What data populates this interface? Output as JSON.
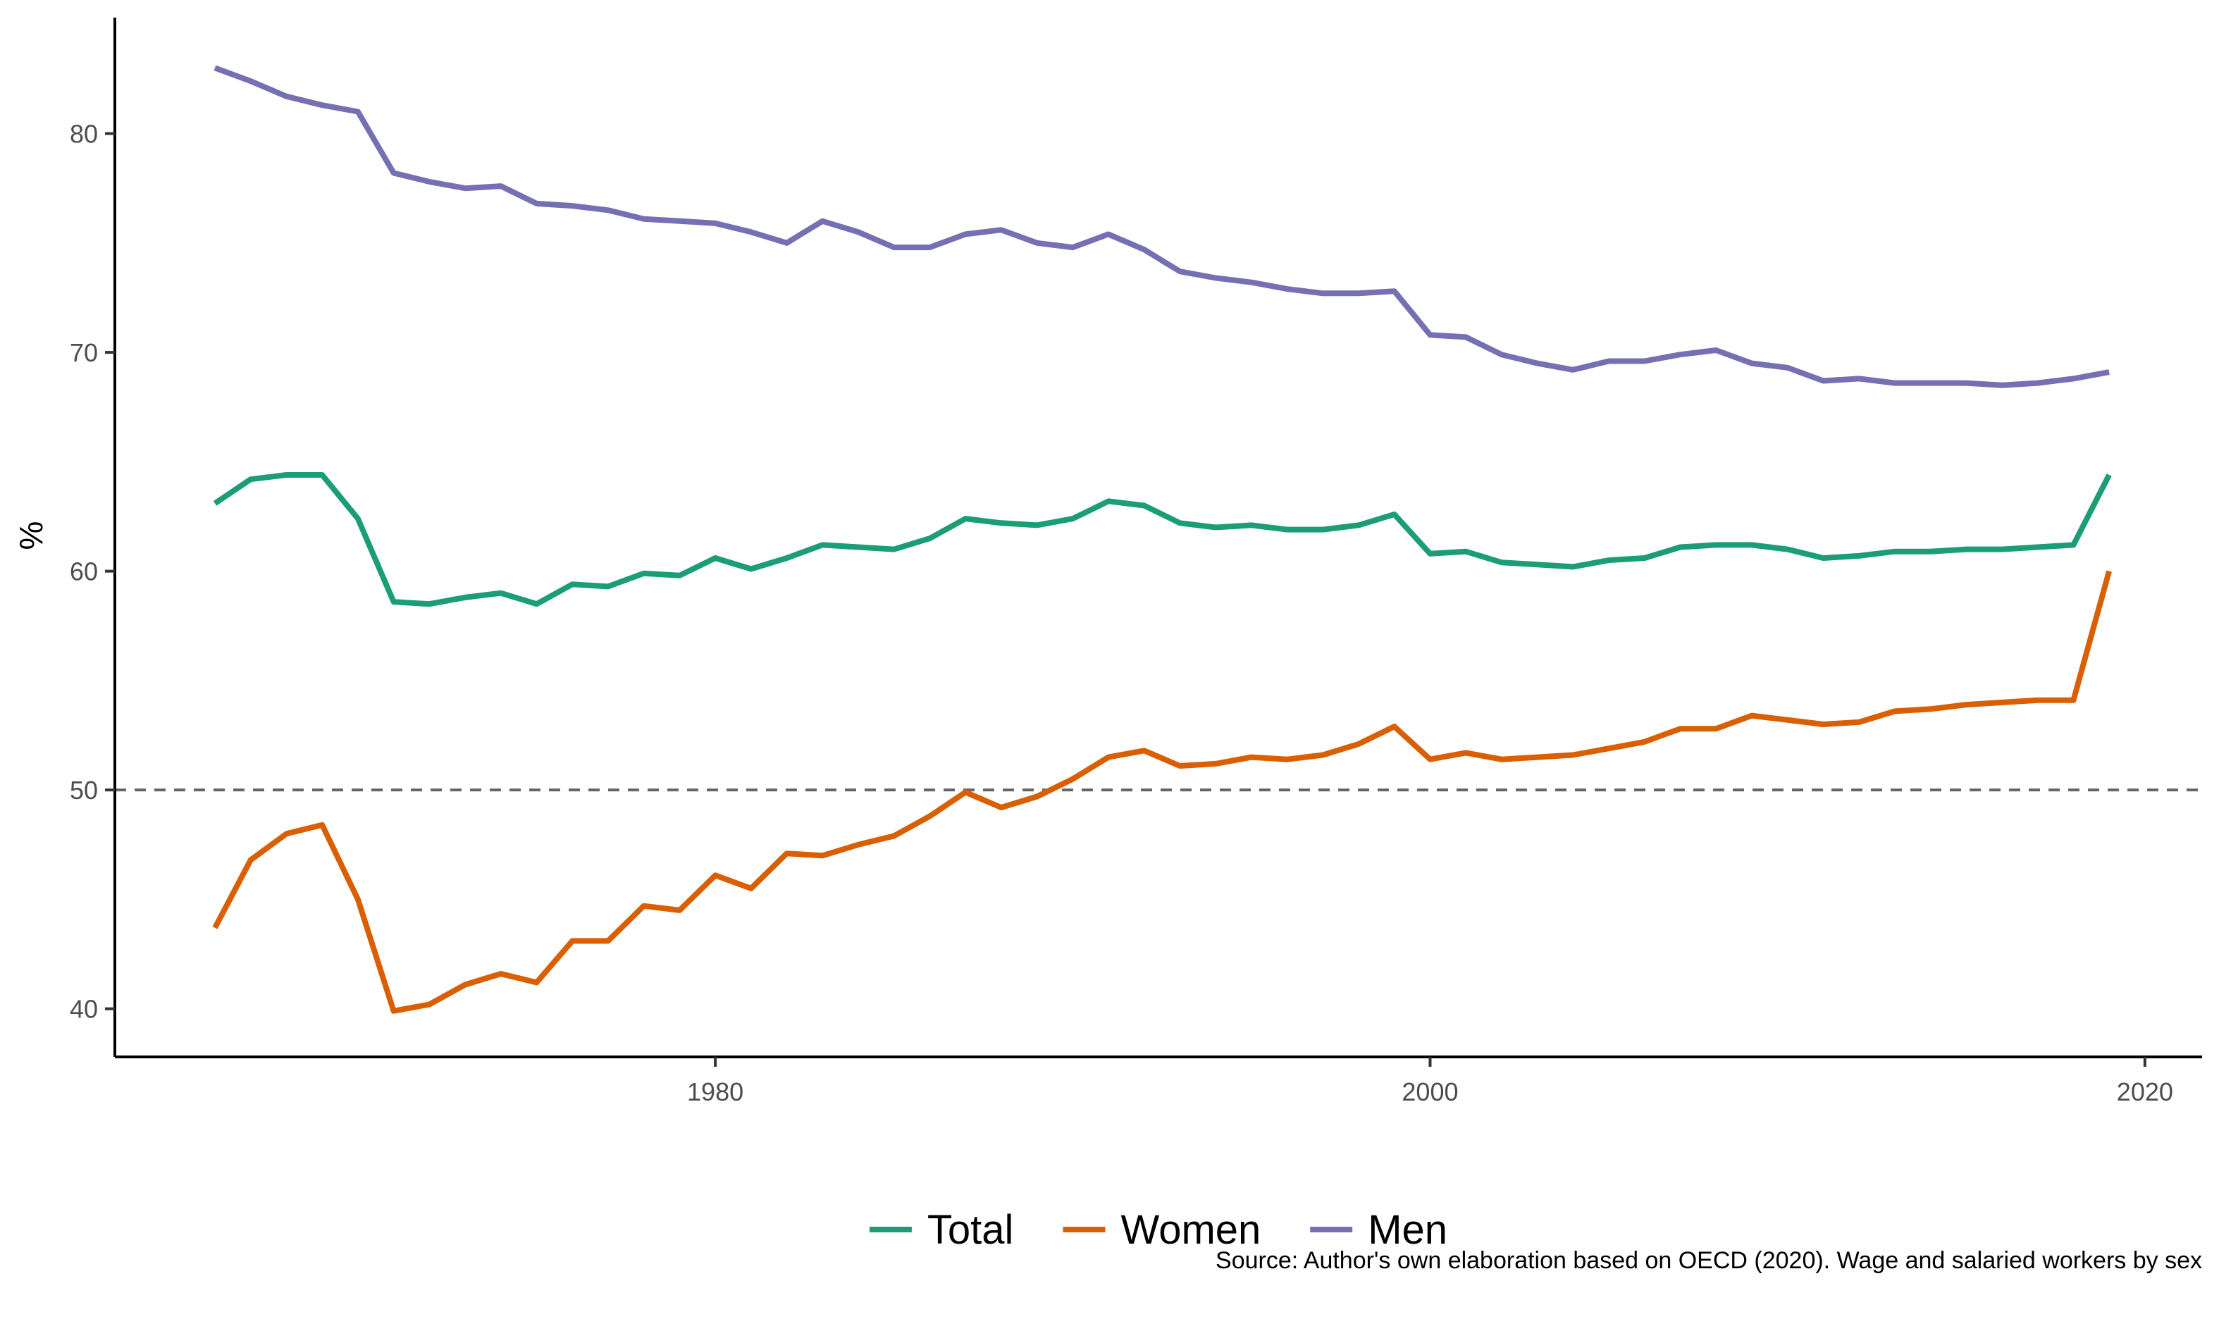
{
  "chart_data": {
    "type": "line",
    "title": "",
    "xlabel": "",
    "ylabel": "%",
    "xlim": [
      1963.2,
      2021.6
    ],
    "ylim": [
      37.8,
      85.3
    ],
    "x_ticks": [
      1980,
      2000,
      2020
    ],
    "y_ticks": [
      40,
      50,
      60,
      70,
      80
    ],
    "grid": false,
    "legend_position": "bottom",
    "reference_line": {
      "y": 50,
      "style": "dashed",
      "color": "#666666"
    },
    "x": [
      1966,
      1967,
      1968,
      1969,
      1970,
      1971,
      1972,
      1973,
      1974,
      1975,
      1976,
      1977,
      1978,
      1979,
      1980,
      1981,
      1982,
      1983,
      1984,
      1985,
      1986,
      1987,
      1988,
      1989,
      1990,
      1991,
      1992,
      1993,
      1994,
      1995,
      1996,
      1997,
      1998,
      1999,
      2000,
      2001,
      2002,
      2003,
      2004,
      2005,
      2006,
      2007,
      2008,
      2009,
      2010,
      2011,
      2012,
      2013,
      2014,
      2015,
      2016,
      2017,
      2018,
      2019
    ],
    "series": [
      {
        "name": "Total",
        "color": "#1b9e77",
        "values": [
          63.1,
          64.2,
          64.4,
          64.4,
          62.4,
          58.6,
          58.5,
          58.8,
          59.0,
          58.5,
          59.4,
          59.3,
          59.9,
          59.8,
          60.6,
          60.1,
          60.6,
          61.2,
          61.1,
          61.0,
          61.5,
          62.4,
          62.2,
          62.1,
          62.4,
          63.2,
          63.0,
          62.2,
          62.0,
          62.1,
          61.9,
          61.9,
          62.1,
          62.6,
          60.8,
          60.9,
          60.4,
          60.3,
          60.2,
          60.5,
          60.6,
          61.1,
          61.2,
          61.2,
          61.0,
          60.6,
          60.7,
          60.9,
          60.9,
          61.0,
          61.0,
          61.1,
          61.2,
          64.4
        ]
      },
      {
        "name": "Women",
        "color": "#d95f02",
        "values": [
          43.7,
          46.8,
          48.0,
          48.4,
          45.0,
          39.9,
          40.2,
          41.1,
          41.6,
          41.2,
          43.1,
          43.1,
          44.7,
          44.5,
          46.1,
          45.5,
          47.1,
          47.0,
          47.5,
          47.9,
          48.8,
          49.9,
          49.2,
          49.7,
          50.5,
          51.5,
          51.8,
          51.1,
          51.2,
          51.5,
          51.4,
          51.6,
          52.1,
          52.9,
          51.4,
          51.7,
          51.4,
          51.5,
          51.6,
          51.9,
          52.2,
          52.8,
          52.8,
          53.4,
          53.2,
          53.0,
          53.1,
          53.6,
          53.7,
          53.9,
          54.0,
          54.1,
          54.1,
          60.0
        ]
      },
      {
        "name": "Men",
        "color": "#7570b3",
        "values": [
          83.0,
          82.4,
          81.7,
          81.3,
          81.0,
          78.2,
          77.8,
          77.5,
          77.6,
          76.8,
          76.7,
          76.5,
          76.1,
          76.0,
          75.9,
          75.5,
          75.0,
          76.0,
          75.5,
          74.8,
          74.8,
          75.4,
          75.6,
          75.0,
          74.8,
          75.4,
          74.7,
          73.7,
          73.4,
          73.2,
          72.9,
          72.7,
          72.7,
          72.8,
          70.8,
          70.7,
          69.9,
          69.5,
          69.2,
          69.6,
          69.6,
          69.9,
          70.1,
          69.5,
          69.3,
          68.7,
          68.8,
          68.6,
          68.6,
          68.6,
          68.5,
          68.6,
          68.8,
          69.1
        ]
      }
    ]
  },
  "source_note": "Source: Author's own elaboration based on OECD (2020). Wage and salaried workers by sex"
}
